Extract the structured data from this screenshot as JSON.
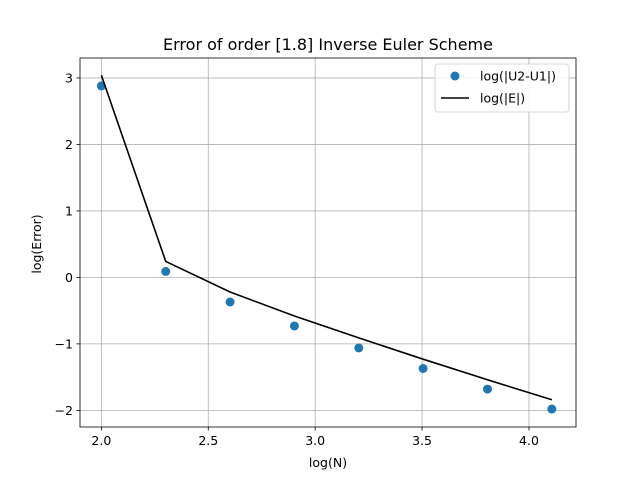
{
  "chart_data": {
    "type": "line",
    "title": "Error of order [1.8] Inverse Euler Scheme",
    "xlabel": "log(N)",
    "ylabel": "log(Error)",
    "xlim": [
      1.9,
      4.22
    ],
    "ylim": [
      -2.25,
      3.3
    ],
    "xticks": [
      2.0,
      2.5,
      3.0,
      3.5,
      4.0
    ],
    "xtick_labels": [
      "2.0",
      "2.5",
      "3.0",
      "3.5",
      "4.0"
    ],
    "yticks": [
      -2,
      -1,
      0,
      1,
      2,
      3
    ],
    "ytick_labels": [
      "−2",
      "−1",
      "0",
      "1",
      "2",
      "3"
    ],
    "grid": true,
    "legend_position": "top-right",
    "series": [
      {
        "name": "log(|U2-U1|)",
        "style": "markers",
        "color": "#1f77b4",
        "x": [
          2.0,
          2.301,
          2.602,
          2.903,
          3.204,
          3.505,
          3.806,
          4.107
        ],
        "y": [
          2.88,
          0.09,
          -0.37,
          -0.73,
          -1.06,
          -1.37,
          -1.68,
          -1.98
        ]
      },
      {
        "name": "log(|E|)",
        "style": "line",
        "color": "#000000",
        "x": [
          2.0,
          2.301,
          2.602,
          2.903,
          3.204,
          3.505,
          3.806,
          4.107
        ],
        "y": [
          3.04,
          0.24,
          -0.22,
          -0.58,
          -0.91,
          -1.23,
          -1.54,
          -1.84
        ]
      }
    ]
  }
}
